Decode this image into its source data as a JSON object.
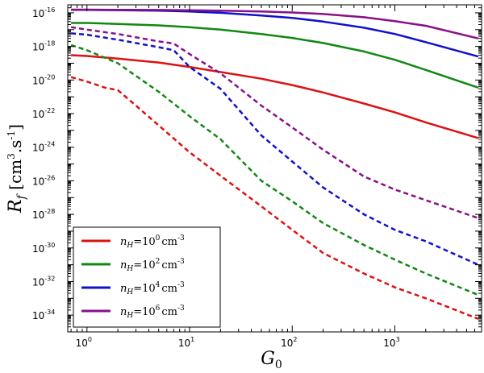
{
  "chart_data": {
    "type": "line",
    "xscale": "log",
    "yscale": "log",
    "xlim": [
      0.65,
      7000
    ],
    "ylim": [
      1e-35,
      3e-16
    ],
    "xlabel": {
      "base": "G",
      "sub": "0"
    },
    "ylabel": {
      "base": "R",
      "sub": "f",
      "units": "[cm^3.s^-1]"
    },
    "x_ticks": [
      {
        "base": "10",
        "exp": "0",
        "value": 1
      },
      {
        "base": "10",
        "exp": "1",
        "value": 10
      },
      {
        "base": "10",
        "exp": "2",
        "value": 100
      },
      {
        "base": "10",
        "exp": "3",
        "value": 1000
      }
    ],
    "y_ticks": [
      {
        "base": "10",
        "exp": "-16",
        "value": 1e-16
      },
      {
        "base": "10",
        "exp": "-18",
        "value": 1e-18
      },
      {
        "base": "10",
        "exp": "-20",
        "value": 1e-20
      },
      {
        "base": "10",
        "exp": "-22",
        "value": 1e-22
      },
      {
        "base": "10",
        "exp": "-24",
        "value": 1e-24
      },
      {
        "base": "10",
        "exp": "-26",
        "value": 1e-26
      },
      {
        "base": "10",
        "exp": "-28",
        "value": 1e-28
      },
      {
        "base": "10",
        "exp": "-30",
        "value": 1e-30
      },
      {
        "base": "10",
        "exp": "-32",
        "value": 1e-32
      },
      {
        "base": "10",
        "exp": "-34",
        "value": 1e-34
      }
    ],
    "legend": {
      "placement": "lower-left",
      "entries": [
        {
          "prefix": "n",
          "sub": "H",
          "mid": "=10",
          "exp": "0",
          "unit": "cm",
          "unit_exp": "-3",
          "color": "#dd1111"
        },
        {
          "prefix": "n",
          "sub": "H",
          "mid": "=10",
          "exp": "2",
          "unit": "cm",
          "unit_exp": "-3",
          "color": "#118811"
        },
        {
          "prefix": "n",
          "sub": "H",
          "mid": "=10",
          "exp": "4",
          "unit": "cm",
          "unit_exp": "-3",
          "color": "#1111cc"
        },
        {
          "prefix": "n",
          "sub": "H",
          "mid": "=10",
          "exp": "6",
          "unit": "cm",
          "unit_exp": "-3",
          "color": "#881188"
        }
      ]
    },
    "series": [
      {
        "name": "nH=10^0 solid",
        "color": "#dd1111",
        "style": "solid",
        "x": [
          0.7,
          1,
          2,
          5,
          10,
          20,
          50,
          100,
          200,
          500,
          1000,
          2000,
          6500
        ],
        "y": [
          3e-19,
          2.7e-19,
          1.9e-19,
          1.1e-19,
          6e-20,
          3e-20,
          1.2e-20,
          5e-21,
          1.8e-21,
          4e-22,
          1.2e-22,
          3e-23,
          3.5e-24
        ]
      },
      {
        "name": "nH=10^2 solid",
        "color": "#118811",
        "style": "solid",
        "x": [
          0.7,
          1,
          2,
          5,
          10,
          20,
          50,
          100,
          200,
          500,
          1000,
          2000,
          6500
        ],
        "y": [
          2.5e-17,
          2.5e-17,
          2.2e-17,
          1.8e-17,
          1.4e-17,
          1e-17,
          5.5e-18,
          3.2e-18,
          1.6e-18,
          5e-19,
          1.6e-19,
          4e-20,
          3.5e-21
        ]
      },
      {
        "name": "nH=10^4 solid",
        "color": "#1111cc",
        "style": "solid",
        "x": [
          0.7,
          1,
          2,
          5,
          10,
          20,
          50,
          100,
          200,
          500,
          1000,
          2000,
          6500
        ],
        "y": [
          1.5e-16,
          1.5e-16,
          1.45e-16,
          1.35e-16,
          1.2e-16,
          1e-16,
          7e-17,
          5e-17,
          3e-17,
          1.3e-17,
          5.5e-18,
          1.8e-18,
          2.5e-19
        ]
      },
      {
        "name": "nH=10^6 solid",
        "color": "#881188",
        "style": "solid",
        "x": [
          0.7,
          1,
          2,
          5,
          10,
          20,
          50,
          100,
          200,
          500,
          1000,
          2000,
          6500
        ],
        "y": [
          1.55e-16,
          1.55e-16,
          1.52e-16,
          1.48e-16,
          1.42e-16,
          1.35e-16,
          1.2e-16,
          1.05e-16,
          8.5e-17,
          5.5e-17,
          3.2e-17,
          1.7e-17,
          3e-18
        ]
      },
      {
        "name": "nH=10^0 dashed",
        "color": "#dd1111",
        "style": "dashed",
        "x": [
          0.7,
          1,
          1.5,
          2,
          3,
          5,
          10,
          20,
          50,
          100,
          200,
          500,
          1000,
          2000,
          6500
        ],
        "y": [
          1.5e-20,
          8e-21,
          3.5e-21,
          2.5e-21,
          3e-22,
          2e-23,
          5e-25,
          2e-26,
          3e-28,
          1.2e-29,
          5e-31,
          3e-32,
          4.5e-33,
          1e-33,
          6e-35
        ]
      },
      {
        "name": "nH=10^2 dashed",
        "color": "#118811",
        "style": "dashed",
        "x": [
          0.7,
          1,
          2,
          5,
          10,
          20,
          50,
          100,
          200,
          500,
          1000,
          2000,
          6500
        ],
        "y": [
          1.2e-18,
          6e-19,
          1e-19,
          2e-21,
          7e-23,
          3e-24,
          1e-26,
          6e-28,
          3e-29,
          1.5e-30,
          2e-31,
          3e-32,
          1.6e-33
        ]
      },
      {
        "name": "nH=10^4 dashed",
        "color": "#1111cc",
        "style": "dashed",
        "x": [
          0.7,
          1,
          2,
          5,
          7,
          10,
          20,
          50,
          100,
          200,
          500,
          1000,
          2000,
          6500
        ],
        "y": [
          6e-18,
          5e-18,
          2.5e-18,
          9e-19,
          6e-19,
          6e-20,
          3e-21,
          5e-24,
          1.4e-25,
          4e-27,
          1e-28,
          1.2e-29,
          2.5e-30,
          1e-31
        ]
      },
      {
        "name": "nH=10^6 dashed",
        "color": "#881188",
        "style": "dashed",
        "x": [
          0.7,
          1,
          2,
          5,
          7,
          10,
          20,
          50,
          100,
          200,
          500,
          1000,
          2000,
          6500
        ],
        "y": [
          1.4e-17,
          1e-17,
          5.5e-18,
          2e-18,
          1.5e-18,
          3.5e-19,
          2.5e-20,
          3e-22,
          1.5e-23,
          7e-25,
          1.8e-26,
          3e-27,
          7e-28,
          6e-29
        ]
      }
    ]
  }
}
